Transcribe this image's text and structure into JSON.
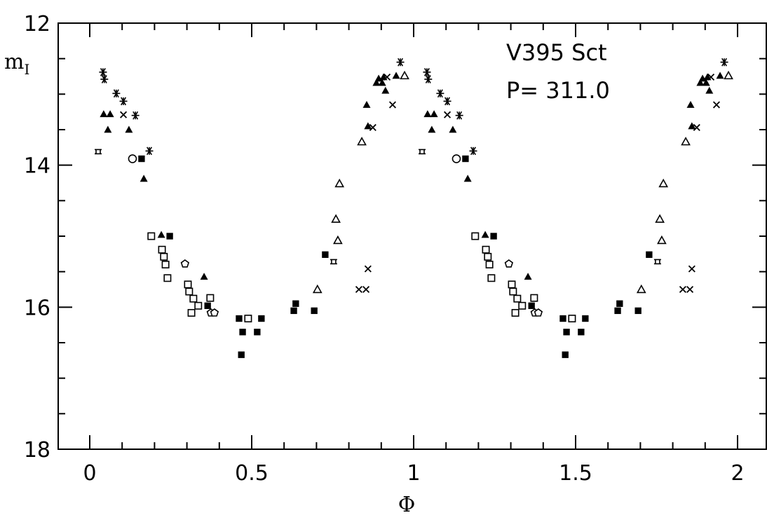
{
  "chart_data": {
    "type": "scatter",
    "title": "",
    "annotations": [
      "V395 Sct",
      "P= 311.0"
    ],
    "xlabel": "Φ",
    "ylabel": {
      "main": "m",
      "sub": "I"
    },
    "xlim": [
      -0.1,
      2.09
    ],
    "ylim": [
      18,
      12
    ],
    "y_inverted": true,
    "x_period": 1,
    "x_ticks": [
      "0",
      "0.5",
      "1",
      "1.5",
      "2"
    ],
    "x_tick_values": [
      0,
      0.5,
      1,
      1.5,
      2
    ],
    "y_ticks": [
      "12",
      "14",
      "16",
      "18"
    ],
    "y_tick_values": [
      12,
      14,
      16,
      18
    ],
    "grid": false,
    "color": "#000000",
    "series": [
      {
        "marker": "asterisk",
        "points": [
          [
            0.041,
            12.69
          ],
          [
            0.045,
            12.79
          ],
          [
            0.082,
            12.99
          ],
          [
            0.104,
            13.1
          ],
          [
            0.141,
            13.3
          ],
          [
            0.184,
            13.8
          ],
          [
            0.959,
            12.55
          ]
        ]
      },
      {
        "marker": "filled-triangle",
        "points": [
          [
            0.043,
            13.28
          ],
          [
            0.063,
            13.28
          ],
          [
            0.056,
            13.5
          ],
          [
            0.121,
            13.5
          ],
          [
            0.167,
            14.19
          ],
          [
            0.221,
            14.98
          ],
          [
            0.353,
            15.57
          ],
          [
            0.892,
            12.78
          ],
          [
            0.907,
            12.76
          ],
          [
            0.885,
            12.84
          ],
          [
            0.903,
            12.84
          ],
          [
            0.946,
            12.74
          ],
          [
            0.913,
            12.95
          ],
          [
            0.855,
            13.15
          ],
          [
            0.859,
            13.45
          ]
        ]
      },
      {
        "marker": "cross",
        "points": [
          [
            0.104,
            13.29
          ],
          [
            0.918,
            12.76
          ],
          [
            0.935,
            13.15
          ],
          [
            0.874,
            13.47
          ],
          [
            0.859,
            15.46
          ],
          [
            0.831,
            15.75
          ],
          [
            0.853,
            15.75
          ]
        ]
      },
      {
        "marker": "open-triangle",
        "points": [
          [
            0.972,
            12.74
          ],
          [
            0.84,
            13.67
          ],
          [
            0.771,
            14.26
          ],
          [
            0.76,
            14.76
          ],
          [
            0.766,
            15.06
          ],
          [
            0.703,
            15.75
          ]
        ]
      },
      {
        "marker": "filled-square",
        "points": [
          [
            0.16,
            13.91
          ],
          [
            0.247,
            15.0
          ],
          [
            0.364,
            15.98
          ],
          [
            0.461,
            16.16
          ],
          [
            0.53,
            16.16
          ],
          [
            0.472,
            16.35
          ],
          [
            0.517,
            16.35
          ],
          [
            0.468,
            16.67
          ],
          [
            0.727,
            15.26
          ],
          [
            0.636,
            15.95
          ],
          [
            0.63,
            16.05
          ],
          [
            0.693,
            16.05
          ]
        ]
      },
      {
        "marker": "open-square",
        "points": [
          [
            0.19,
            15.0
          ],
          [
            0.223,
            15.19
          ],
          [
            0.229,
            15.29
          ],
          [
            0.234,
            15.4
          ],
          [
            0.24,
            15.59
          ],
          [
            0.303,
            15.68
          ],
          [
            0.307,
            15.78
          ],
          [
            0.32,
            15.88
          ],
          [
            0.335,
            15.98
          ],
          [
            0.314,
            16.08
          ],
          [
            0.372,
            15.87
          ],
          [
            0.489,
            16.16
          ]
        ]
      },
      {
        "marker": "open-pentagon",
        "points": [
          [
            0.294,
            15.39
          ],
          [
            0.374,
            16.08
          ],
          [
            0.385,
            16.08
          ]
        ]
      },
      {
        "marker": "open-circle",
        "points": [
          [
            0.132,
            13.91
          ]
        ]
      },
      {
        "marker": "tick-square",
        "points": [
          [
            0.026,
            13.81
          ],
          [
            0.753,
            15.36
          ]
        ]
      }
    ]
  }
}
